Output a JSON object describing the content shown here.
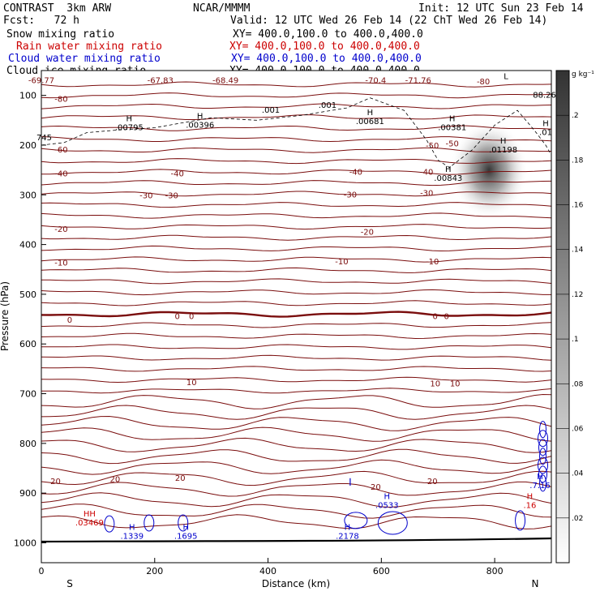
{
  "header": {
    "title": "CONTRAST  3km ARW",
    "org": "NCAR/MMMM",
    "init": "Init: 12 UTC Sun 23 Feb 14",
    "fcst": "Fcst:   72 h",
    "valid": "Valid: 12 UTC Wed 26 Feb 14 (22 ChT Wed 26 Feb 14)",
    "fields": [
      {
        "name": "Snow mixing ratio",
        "xy": "XY= 400.0,100.0 to 400.0,400.0",
        "color": "#000000"
      },
      {
        "name": "Rain water mixing ratio",
        "xy": "XY= 400.0,100.0 to 400.0,400.0",
        "color": "#cc0000"
      },
      {
        "name": "Cloud water mixing ratio",
        "xy": "XY= 400.0,100.0 to 400.0,400.0",
        "color": "#0000cc"
      },
      {
        "name": "Cloud ice mixing ratio",
        "xy": "XY= 400.0,100.0 to 400.0,400.0",
        "color": "#000000"
      }
    ]
  },
  "chart_data": {
    "type": "cross-section",
    "xlabel": "Distance (km)",
    "ylabel": "Pressure (hPa)",
    "xlim": [
      0,
      900
    ],
    "ylim": [
      1040,
      50
    ],
    "x_ticks": [
      "0",
      "200",
      "400",
      "600",
      "800"
    ],
    "x_tick_values": [
      0,
      200,
      400,
      600,
      800
    ],
    "y_ticks": [
      "100",
      "200",
      "300",
      "400",
      "500",
      "600",
      "700",
      "800",
      "900",
      "1000"
    ],
    "y_tick_values": [
      100,
      200,
      300,
      400,
      500,
      600,
      700,
      800,
      900,
      1000
    ],
    "end_labels": {
      "left": "S",
      "right": "N"
    },
    "colorbar": {
      "unit": "g kg⁻¹",
      "ticks": [
        ".2",
        ".18",
        ".16",
        ".14",
        ".12",
        ".1",
        ".08",
        ".06",
        ".04",
        ".02"
      ],
      "tick_values": [
        0.2,
        0.18,
        0.16,
        0.14,
        0.12,
        0.1,
        0.08,
        0.06,
        0.04,
        0.02
      ],
      "range": [
        0,
        0.22
      ]
    },
    "temperature_contour_labels": [
      {
        "text": "-69.77",
        "x": 0,
        "p": 70
      },
      {
        "text": "-67.83",
        "x": 210,
        "p": 70
      },
      {
        "text": "-68.49",
        "x": 325,
        "p": 70
      },
      {
        "text": "-70.4",
        "x": 590,
        "p": 70
      },
      {
        "text": "-71.76",
        "x": 665,
        "p": 70
      },
      {
        "text": "-80",
        "x": 780,
        "p": 73
      },
      {
        "text": "-80",
        "x": 35,
        "p": 108
      },
      {
        "text": "-60",
        "x": 35,
        "p": 210
      },
      {
        "text": "-50",
        "x": 690,
        "p": 202
      },
      {
        "text": "-50",
        "x": 725,
        "p": 198
      },
      {
        "text": "-40",
        "x": 35,
        "p": 258
      },
      {
        "text": "-40",
        "x": 240,
        "p": 258
      },
      {
        "text": "-40",
        "x": 555,
        "p": 255
      },
      {
        "text": "-40",
        "x": 680,
        "p": 255
      },
      {
        "text": "-30",
        "x": 185,
        "p": 302
      },
      {
        "text": "-30",
        "x": 230,
        "p": 302
      },
      {
        "text": "-30",
        "x": 545,
        "p": 300
      },
      {
        "text": "-30",
        "x": 680,
        "p": 297
      },
      {
        "text": "-20",
        "x": 35,
        "p": 370
      },
      {
        "text": "-20",
        "x": 575,
        "p": 375
      },
      {
        "text": "-10",
        "x": 35,
        "p": 437
      },
      {
        "text": "-10",
        "x": 530,
        "p": 435
      },
      {
        "text": "-10",
        "x": 690,
        "p": 435
      },
      {
        "text": "0",
        "x": 50,
        "p": 552
      },
      {
        "text": "0",
        "x": 240,
        "p": 545
      },
      {
        "text": "0",
        "x": 265,
        "p": 545
      },
      {
        "text": "0",
        "x": 695,
        "p": 545
      },
      {
        "text": "0",
        "x": 715,
        "p": 545
      },
      {
        "text": "10",
        "x": 265,
        "p": 678
      },
      {
        "text": "10",
        "x": 695,
        "p": 680
      },
      {
        "text": "10",
        "x": 730,
        "p": 680
      },
      {
        "text": "20",
        "x": 25,
        "p": 877
      },
      {
        "text": "20",
        "x": 130,
        "p": 873
      },
      {
        "text": "20",
        "x": 245,
        "p": 870
      },
      {
        "text": "20",
        "x": 590,
        "p": 888
      },
      {
        "text": "20",
        "x": 690,
        "p": 877
      }
    ],
    "extrema_labels": [
      {
        "kind": "H",
        "text": ".00795",
        "x": 155,
        "p": 160,
        "color": "#000000"
      },
      {
        "kind": "H",
        "text": ".00396",
        "x": 280,
        "p": 155,
        "color": "#000000"
      },
      {
        "kind": "H",
        "text": ".00681",
        "x": 580,
        "p": 148,
        "color": "#000000"
      },
      {
        "kind": "H",
        "text": ".00381",
        "x": 725,
        "p": 160,
        "color": "#000000"
      },
      {
        "kind": "H",
        "text": ".01198",
        "x": 815,
        "p": 205,
        "color": "#000000"
      },
      {
        "kind": "H",
        "text": ".00843",
        "x": 718,
        "p": 262,
        "color": "#000000"
      },
      {
        "kind": "H",
        "text": ".01",
        "x": 890,
        "p": 170,
        "color": "#000000"
      },
      {
        "kind": "L",
        "text": "",
        "x": 820,
        "p": 75,
        "color": "#000000"
      },
      {
        "kind": "H",
        "text": ".0533",
        "x": 610,
        "p": 920,
        "color": "#0000cc"
      },
      {
        "kind": "H",
        "text": ".1339",
        "x": 160,
        "p": 982,
        "color": "#0000cc"
      },
      {
        "kind": "H",
        "text": ".1695",
        "x": 255,
        "p": 982,
        "color": "#0000cc"
      },
      {
        "kind": "H",
        "text": ".2178",
        "x": 540,
        "p": 982,
        "color": "#0000cc"
      },
      {
        "kind": "H",
        "text": ".7.16",
        "x": 880,
        "p": 880,
        "color": "#0000cc"
      },
      {
        "kind": "HH",
        "text": ".03469",
        "x": 85,
        "p": 955,
        "color": "#cc0000"
      },
      {
        "kind": "H",
        "text": ".16",
        "x": 862,
        "p": 920,
        "color": "#cc0000"
      }
    ],
    "snow_field_max": {
      "x": 790,
      "p": 250,
      "value": 0.2
    },
    "other_labels": [
      {
        "text": ".001",
        "x": 405,
        "p": 130
      },
      {
        "text": ".001",
        "x": 505,
        "p": 120
      },
      {
        "text": "745",
        "x": 5,
        "p": 185
      },
      {
        "text": "88.26",
        "x": 888,
        "p": 100
      }
    ]
  }
}
